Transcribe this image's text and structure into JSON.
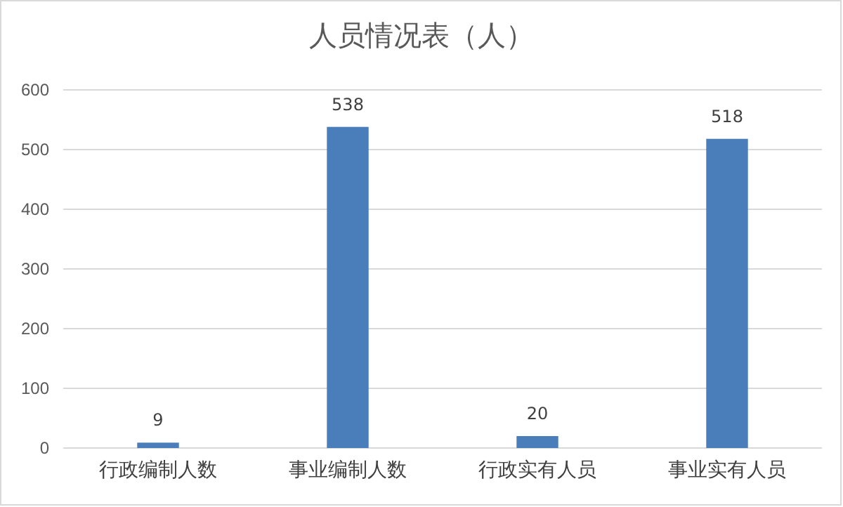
{
  "chart_data": {
    "type": "bar",
    "title": "人员情况表（人）",
    "categories": [
      "行政编制人数",
      "事业编制人数",
      "行政实有人员",
      "事业实有人员"
    ],
    "values": [
      9,
      538,
      20,
      518
    ],
    "color": "#4a7ebb",
    "ylim": [
      0,
      600
    ],
    "yticks": [
      0,
      100,
      200,
      300,
      400,
      500,
      600
    ],
    "grid": "y",
    "data_labels": true
  }
}
